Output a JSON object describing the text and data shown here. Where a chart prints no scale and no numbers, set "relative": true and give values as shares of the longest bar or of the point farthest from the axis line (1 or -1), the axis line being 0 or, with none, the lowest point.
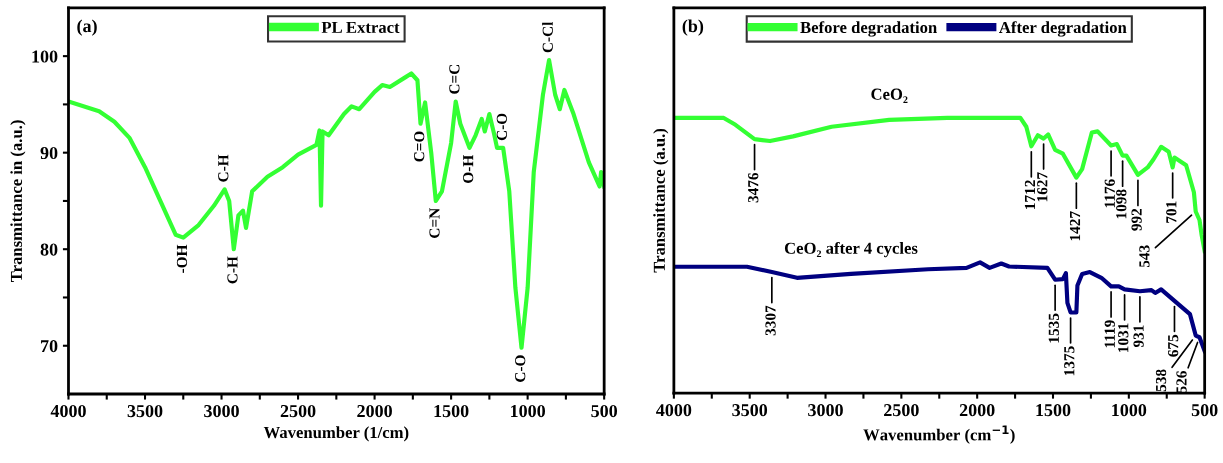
{
  "chart_data": [
    {
      "type": "line",
      "xlabel": "Wavenumber (1/cm)",
      "ylabel": "Transmittance in (a.u.)",
      "legend": "top",
      "line_style": "solid",
      "marker": "none",
      "xlim": [
        4000,
        500
      ],
      "ylim": [
        65,
        105
      ],
      "xticks": [
        4000,
        {
          "value": 3750,
          "label": null
        },
        3500,
        {
          "value": 3250,
          "label": null
        },
        3000,
        {
          "value": 2750,
          "label": null
        },
        2500,
        {
          "value": 2250,
          "label": null
        },
        2000,
        {
          "value": 1750,
          "label": null
        },
        1500,
        {
          "value": 1250,
          "label": null
        },
        1000,
        {
          "value": 750,
          "label": null
        },
        500
      ],
      "yticks": [
        70,
        {
          "value": 75,
          "label": null
        },
        80,
        {
          "value": 85,
          "label": null
        },
        90,
        {
          "value": 95,
          "label": null
        },
        100
      ],
      "series": [
        {
          "name": "PL Extract",
          "color": "#33ff33",
          "x": [
            4000,
            3800,
            3700,
            3600,
            3500,
            3400,
            3300,
            3250,
            3150,
            3050,
            2980,
            2950,
            2920,
            2890,
            2860,
            2840,
            2800,
            2700,
            2600,
            2500,
            2380,
            2360,
            2350,
            2340,
            2300,
            2200,
            2150,
            2100,
            2000,
            1950,
            1900,
            1800,
            1760,
            1720,
            1700,
            1670,
            1630,
            1600,
            1560,
            1500,
            1470,
            1440,
            1380,
            1340,
            1300,
            1280,
            1250,
            1220,
            1200,
            1160,
            1120,
            1080,
            1040,
            1000,
            960,
            900,
            860,
            820,
            790,
            760,
            700,
            600,
            530,
            520,
            500
          ],
          "values": [
            95.3,
            94.3,
            93.2,
            91.5,
            88.5,
            85,
            81.5,
            81.2,
            82.5,
            84.5,
            86.2,
            85,
            80,
            83.5,
            84,
            82.2,
            86,
            87.5,
            88.5,
            89.8,
            90.8,
            92.3,
            84.5,
            92.2,
            91.8,
            94,
            94.8,
            94.5,
            96.3,
            97,
            96.8,
            97.8,
            98.2,
            97.5,
            93,
            95.2,
            90,
            85,
            86,
            91,
            95.3,
            93,
            90.5,
            91.8,
            93.5,
            92.2,
            94,
            92,
            90.5,
            90.5,
            86,
            76,
            69.8,
            76,
            88,
            96,
            99.6,
            96,
            94.5,
            96.5,
            94,
            89,
            86.5,
            88,
            86.5
          ]
        }
      ],
      "annotations": [
        "(a)",
        {
          "text": "-OH",
          "x": 3250,
          "y": 81.2
        },
        {
          "text": "C-H",
          "x": 2980,
          "y": 86.2
        },
        {
          "text": "C-H",
          "x": 2920,
          "y": 80
        },
        {
          "text": "C=O",
          "x": 1700,
          "y": 93
        },
        {
          "text": "C=N",
          "x": 1600,
          "y": 85
        },
        {
          "text": "C=C",
          "x": 1470,
          "y": 95.3
        },
        {
          "text": "O-H",
          "x": 1380,
          "y": 90.5
        },
        {
          "text": "C-O",
          "x": 1160,
          "y": 90.5
        },
        {
          "text": "C-O",
          "x": 1040,
          "y": 69.8
        },
        {
          "text": "C-Cl",
          "x": 860,
          "y": 99.6
        }
      ]
    },
    {
      "type": "line",
      "xlabel": "Wavenumber (cm$^{−1}$)",
      "ylabel": "Transmittance (a.u.)",
      "legend": "top",
      "line_style": "solid",
      "marker": "none",
      "relative": true,
      "tick_labels": "x",
      "xlim": [
        4000,
        500
      ],
      "xticks": [
        4000,
        {
          "value": 3750,
          "label": null
        },
        3500,
        {
          "value": 3250,
          "label": null
        },
        3000,
        {
          "value": 2750,
          "label": null
        },
        2500,
        {
          "value": 2250,
          "label": null
        },
        2000,
        {
          "value": 1750,
          "label": null
        },
        1500,
        {
          "value": 1250,
          "label": null
        },
        1000,
        {
          "value": 750,
          "label": null
        },
        500
      ],
      "series": [
        {
          "name": "Before degradation",
          "color": "#33ff33",
          "x": [
            4000,
            3671,
            3594,
            3468,
            3366,
            3214,
            2960,
            2580,
            2197,
            1715,
            1676,
            1643,
            1600,
            1562,
            1532,
            1486,
            1435,
            1346,
            1308,
            1244,
            1206,
            1117,
            1079,
            1041,
            1016,
            940,
            876,
            838,
            787,
            737,
            711,
            699,
            622,
            571,
            559,
            534,
            520,
            500
          ],
          "values": [
            1.0,
            1.0,
            0.975,
            0.923,
            0.916,
            0.933,
            0.968,
            0.993,
            1.0,
            1.0,
            0.968,
            0.897,
            0.937,
            0.925,
            0.94,
            0.884,
            0.87,
            0.783,
            0.814,
            0.947,
            0.951,
            0.9,
            0.905,
            0.863,
            0.863,
            0.793,
            0.82,
            0.849,
            0.895,
            0.877,
            0.82,
            0.856,
            0.828,
            0.73,
            0.66,
            0.629,
            0.575,
            0.516
          ]
        },
        {
          "name": "After degradation",
          "color": "#000080",
          "x": [
            4000,
            3518,
            3354,
            3188,
            2832,
            2324,
            2070,
            1981,
            1918,
            1841,
            1790,
            1537,
            1486,
            1435,
            1415,
            1405,
            1384,
            1346,
            1339,
            1308,
            1257,
            1181,
            1117,
            1066,
            1028,
            927,
            851,
            826,
            787,
            699,
            597,
            559,
            534,
            500
          ],
          "values": [
            0.459,
            0.459,
            0.44,
            0.419,
            0.433,
            0.45,
            0.455,
            0.475,
            0.455,
            0.471,
            0.46,
            0.455,
            0.412,
            0.414,
            0.436,
            0.328,
            0.293,
            0.293,
            0.391,
            0.433,
            0.44,
            0.419,
            0.388,
            0.388,
            0.377,
            0.37,
            0.374,
            0.364,
            0.377,
            0.335,
            0.287,
            0.209,
            0.203,
            0.153
          ]
        }
      ],
      "annotations": [
        "(b)",
        {
          "text": "CeO₂",
          "x": 2580,
          "y": 0.993
        },
        {
          "text": "CeO₂ after 4 cycles",
          "x": 2832,
          "y": 0.433
        },
        {
          "text": "3476",
          "x": 3468,
          "y": 0.923
        },
        {
          "text": "1712",
          "x": 1643,
          "y": 0.897
        },
        {
          "text": "1627",
          "x": 1562,
          "y": 0.925
        },
        {
          "text": "1427",
          "x": 1346,
          "y": 0.783
        },
        {
          "text": "1176",
          "x": 1117,
          "y": 0.9
        },
        {
          "text": "1098",
          "x": 1041,
          "y": 0.863
        },
        {
          "text": "992",
          "x": 940,
          "y": 0.793
        },
        {
          "text": "701",
          "x": 711,
          "y": 0.82
        },
        {
          "text": "543",
          "x": 559,
          "y": 0.66
        },
        {
          "text": "3307",
          "x": 3354,
          "y": 0.44
        },
        {
          "text": "1535",
          "x": 1486,
          "y": 0.412
        },
        {
          "text": "1375",
          "x": 1384,
          "y": 0.293
        },
        {
          "text": "1119",
          "x": 1117,
          "y": 0.388
        },
        {
          "text": "1031",
          "x": 1028,
          "y": 0.377
        },
        {
          "text": "931",
          "x": 927,
          "y": 0.37
        },
        {
          "text": "675",
          "x": 699,
          "y": 0.335
        },
        {
          "text": "538",
          "x": 559,
          "y": 0.209
        },
        {
          "text": "526",
          "x": 534,
          "y": 0.203
        }
      ]
    }
  ]
}
